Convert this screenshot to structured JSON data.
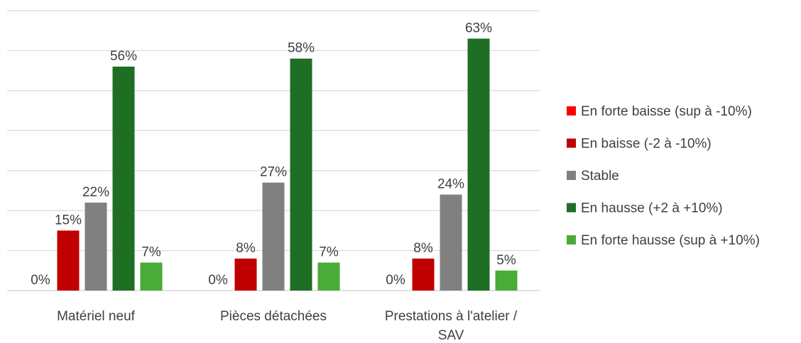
{
  "chart_data": {
    "type": "bar",
    "categories": [
      [
        "Matériel neuf"
      ],
      [
        "Pièces détachées"
      ],
      [
        "Prestations à l'atelier /",
        "SAV"
      ]
    ],
    "series": [
      {
        "name": "En forte baisse (sup à -10%)",
        "color": "#ff0000",
        "values": [
          0,
          0,
          0
        ],
        "labels": [
          "0%",
          "0%",
          "0%"
        ]
      },
      {
        "name": "En baisse (-2 à -10%)",
        "color": "#c00000",
        "values": [
          15,
          8,
          8
        ],
        "labels": [
          "15%",
          "8%",
          "8%"
        ]
      },
      {
        "name": "Stable",
        "color": "#808080",
        "values": [
          22,
          27,
          24
        ],
        "labels": [
          "22%",
          "27%",
          "24%"
        ]
      },
      {
        "name": "En hausse (+2 à +10%)",
        "color": "#1e6e24",
        "values": [
          56,
          58,
          63
        ],
        "labels": [
          "56%",
          "58%",
          "63%"
        ]
      },
      {
        "name": "En forte hausse (sup à +10%)",
        "color": "#4aab36",
        "values": [
          7,
          7,
          5
        ],
        "labels": [
          "7%",
          "7%",
          "5%"
        ]
      }
    ],
    "ylim": [
      0,
      70
    ],
    "grid": true,
    "legend_position": "right"
  }
}
